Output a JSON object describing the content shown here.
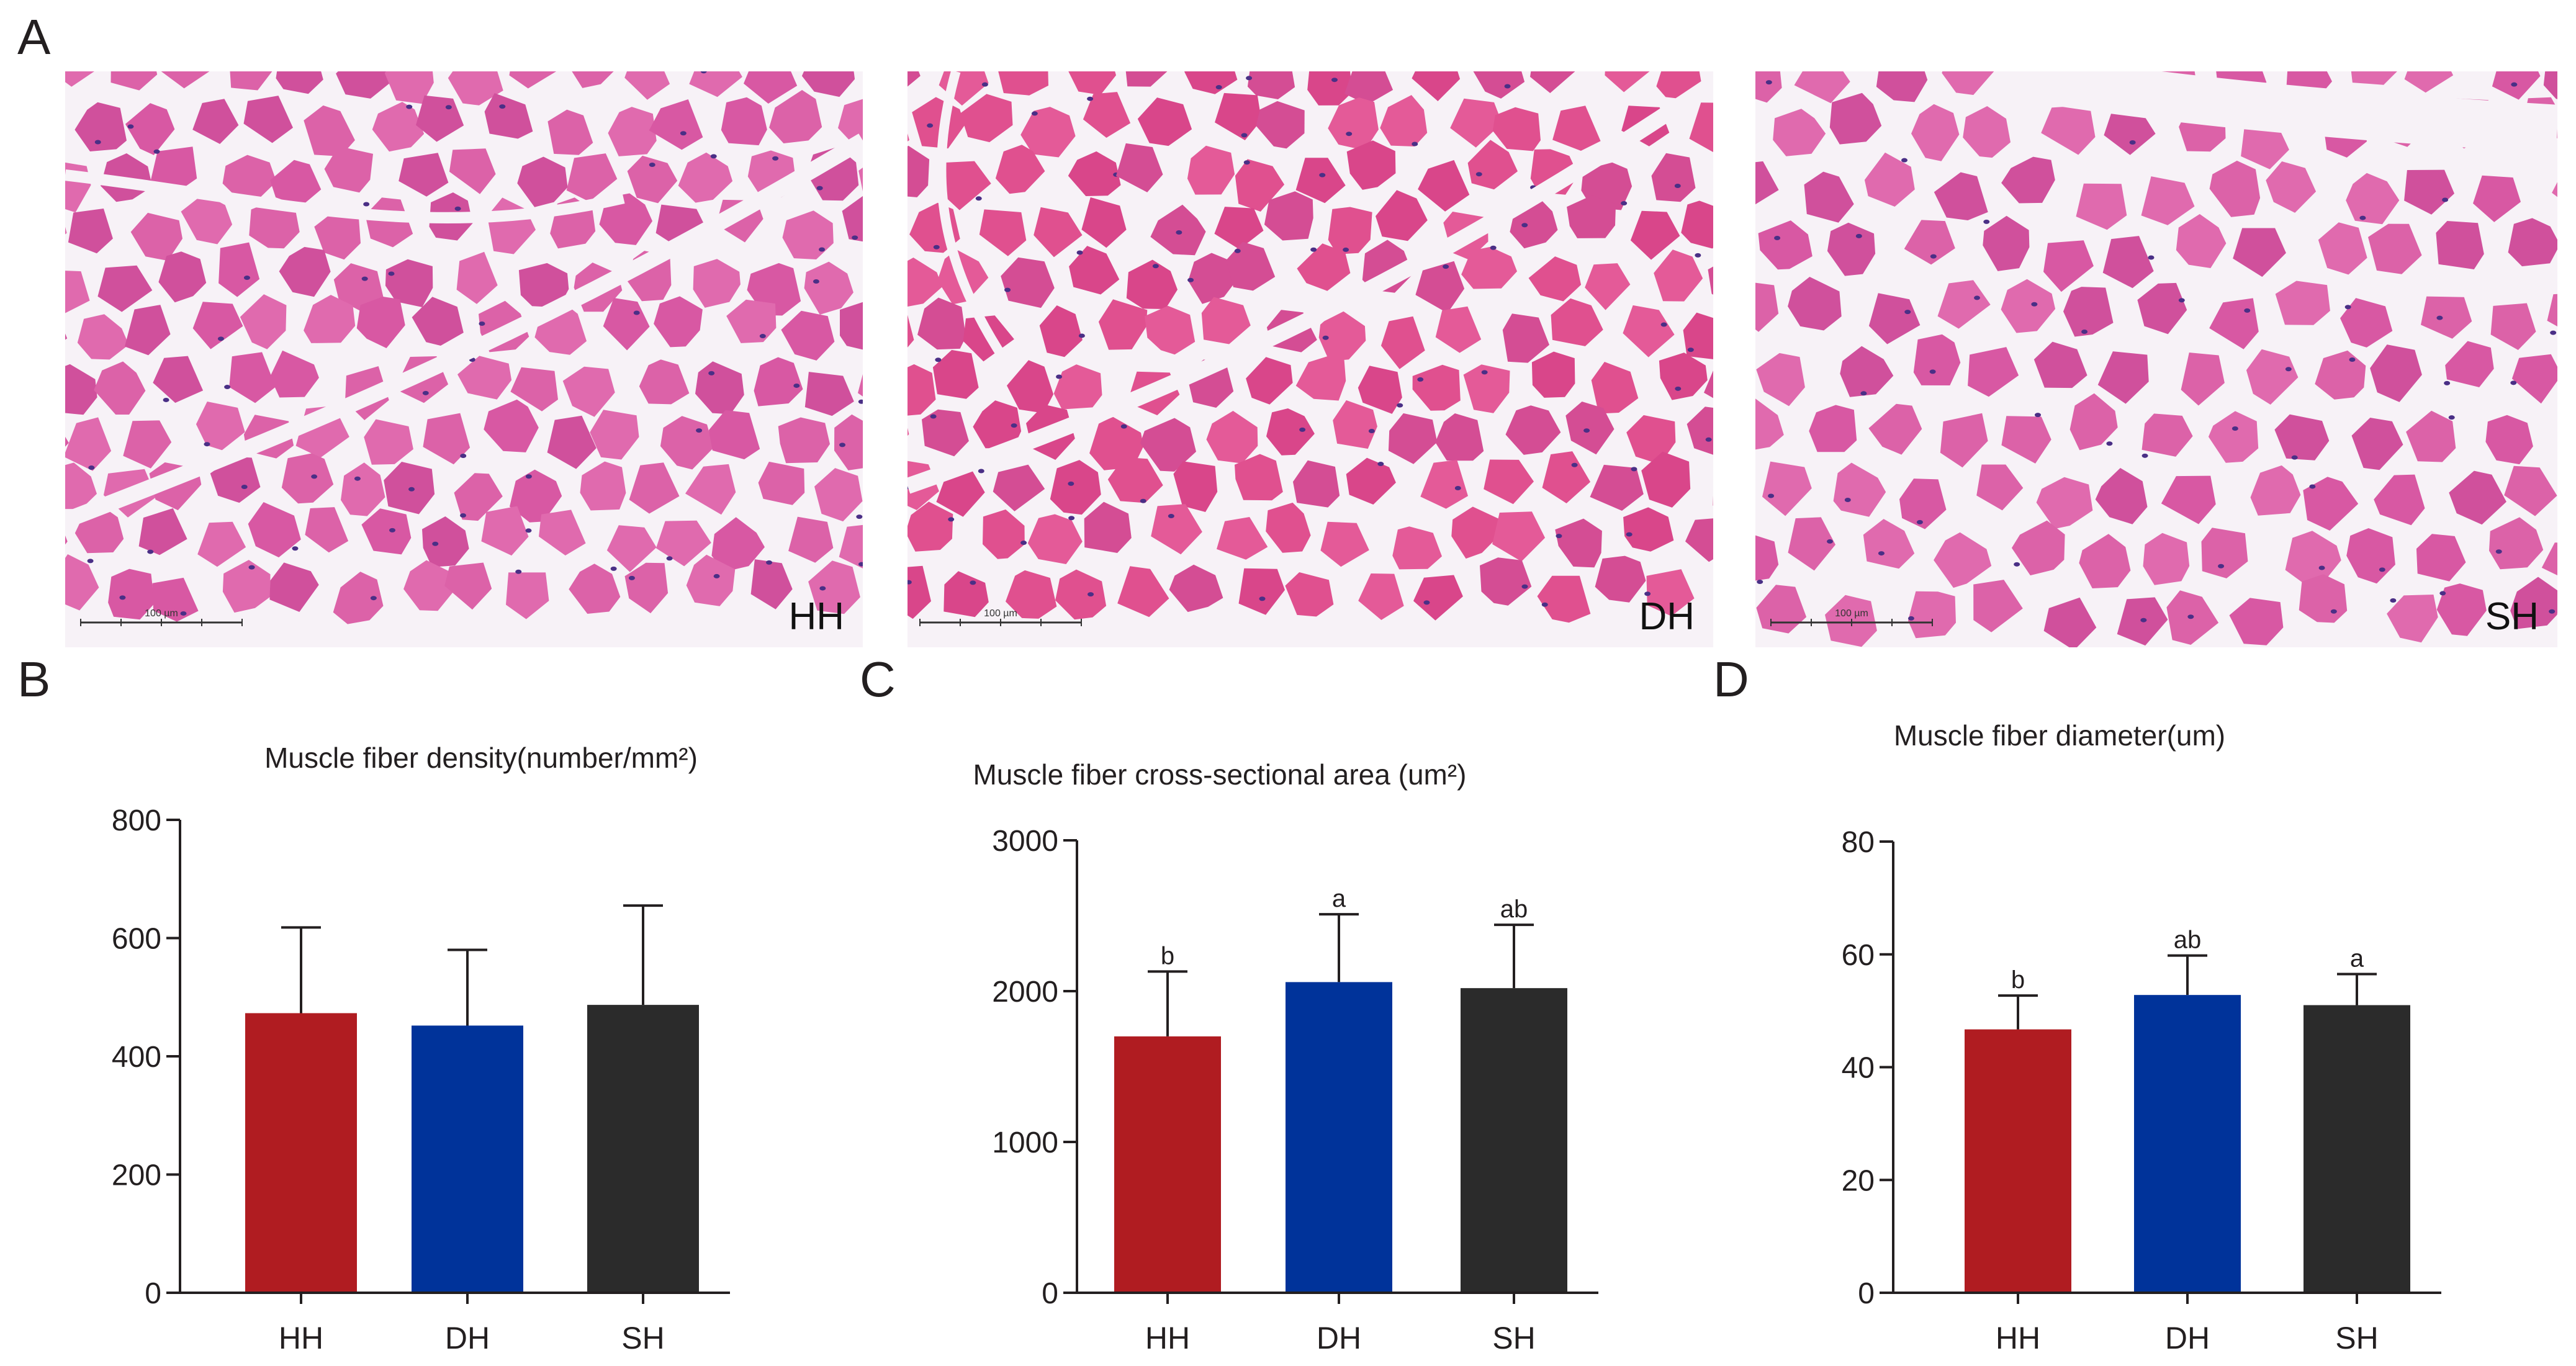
{
  "panels": {
    "A": {
      "letter": "A",
      "images": [
        "HH",
        "DH",
        "SH"
      ],
      "scalebar": "100 µm"
    },
    "B": {
      "letter": "B"
    },
    "C": {
      "letter": "C"
    },
    "D": {
      "letter": "D"
    }
  },
  "colors": {
    "HH": "#b01c21",
    "DH": "#00339a",
    "SH": "#2b2b2b",
    "tissue": "#d64f9a",
    "interstitial": "#f7f2f7",
    "nuclei": "#4a2f86"
  },
  "chart_data": [
    {
      "type": "bar",
      "title": "Muscle fiber density(number/mm²)",
      "categories": [
        "HH",
        "DH",
        "SH"
      ],
      "values": [
        473,
        452,
        487
      ],
      "errors": [
        145,
        128,
        168
      ],
      "letters": [
        "",
        "",
        ""
      ],
      "yticks": [
        0,
        200,
        400,
        600,
        800
      ],
      "ylim": [
        0,
        800
      ]
    },
    {
      "type": "bar",
      "title": "Muscle fiber  cross-sectional area (um²)",
      "categories": [
        "HH",
        "DH",
        "SH"
      ],
      "values": [
        1700,
        2060,
        2020
      ],
      "errors": [
        430,
        450,
        420
      ],
      "letters": [
        "b",
        "a",
        "ab"
      ],
      "yticks": [
        0,
        1000,
        2000,
        3000
      ],
      "ylim": [
        0,
        3000
      ]
    },
    {
      "type": "bar",
      "title": "Muscle fiber diameter(um)",
      "categories": [
        "HH",
        "DH",
        "SH"
      ],
      "values": [
        46.7,
        52.8,
        51.0
      ],
      "errors": [
        6.0,
        7.0,
        5.5
      ],
      "letters": [
        "b",
        "ab",
        "a"
      ],
      "yticks": [
        0,
        20,
        40,
        60,
        80
      ],
      "ylim": [
        0,
        80
      ]
    }
  ]
}
